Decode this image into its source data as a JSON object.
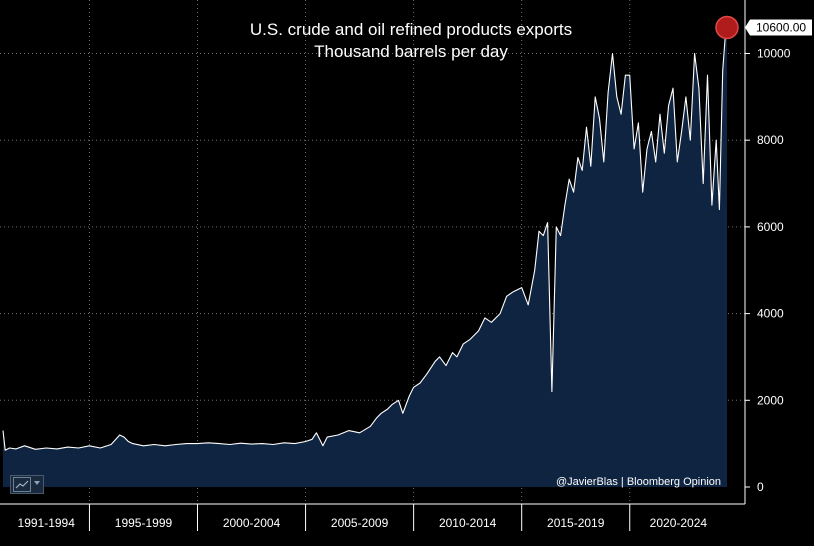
{
  "chart_data": {
    "type": "area",
    "title": "U.S. crude and oil refined products exports",
    "subtitle": "Thousand barrels per day",
    "ylim": [
      0,
      10800
    ],
    "yticks": [
      "0",
      "2000",
      "4000",
      "6000",
      "8000",
      "10000"
    ],
    "ytick_values": [
      0,
      2000,
      4000,
      6000,
      8000,
      10000
    ],
    "x_range": [
      1991,
      2024.5
    ],
    "period_bounds": [
      1991,
      1995,
      2000,
      2005,
      2010,
      2015,
      2020,
      2024.5
    ],
    "x_categories": [
      "1991-1994",
      "1995-1999",
      "2000-2004",
      "2005-2009",
      "2010-2014",
      "2015-2019",
      "2020-2024"
    ],
    "last_value_label": "10600.00",
    "last_value": 10600,
    "credit": "@JavierBlas | Bloomberg Opinion",
    "series": [
      {
        "name": "U.S. crude and oil refined products exports",
        "x": [
          1991.0,
          1991.1,
          1991.3,
          1991.6,
          1992.0,
          1992.5,
          1993.0,
          1993.5,
          1994.0,
          1994.5,
          1995.0,
          1995.5,
          1996.0,
          1996.4,
          1996.6,
          1996.8,
          1997.0,
          1997.5,
          1998.0,
          1998.5,
          1999.0,
          1999.5,
          2000.0,
          2000.5,
          2001.0,
          2001.5,
          2002.0,
          2002.5,
          2003.0,
          2003.5,
          2004.0,
          2004.5,
          2005.0,
          2005.3,
          2005.5,
          2005.8,
          2006.0,
          2006.5,
          2007.0,
          2007.5,
          2008.0,
          2008.3,
          2008.5,
          2008.8,
          2009.0,
          2009.3,
          2009.5,
          2009.8,
          2010.0,
          2010.3,
          2010.6,
          2011.0,
          2011.2,
          2011.5,
          2011.8,
          2012.0,
          2012.3,
          2012.6,
          2013.0,
          2013.3,
          2013.6,
          2014.0,
          2014.3,
          2014.6,
          2015.0,
          2015.3,
          2015.6,
          2015.8,
          2016.0,
          2016.2,
          2016.4,
          2016.6,
          2016.8,
          2017.0,
          2017.2,
          2017.4,
          2017.6,
          2017.8,
          2018.0,
          2018.2,
          2018.4,
          2018.6,
          2018.8,
          2019.0,
          2019.2,
          2019.4,
          2019.6,
          2019.8,
          2020.0,
          2020.2,
          2020.4,
          2020.6,
          2020.8,
          2021.0,
          2021.2,
          2021.4,
          2021.6,
          2021.8,
          2022.0,
          2022.2,
          2022.4,
          2022.6,
          2022.8,
          2023.0,
          2023.2,
          2023.4,
          2023.6,
          2023.8,
          2024.0,
          2024.15,
          2024.3,
          2024.45,
          2024.5
        ],
        "values": [
          1300,
          850,
          900,
          880,
          950,
          870,
          900,
          880,
          920,
          900,
          950,
          900,
          980,
          1200,
          1150,
          1050,
          1000,
          950,
          980,
          950,
          980,
          1000,
          1000,
          1020,
          1000,
          980,
          1010,
          990,
          1000,
          980,
          1020,
          1000,
          1050,
          1100,
          1250,
          950,
          1150,
          1200,
          1300,
          1250,
          1400,
          1600,
          1700,
          1800,
          1900,
          2000,
          1700,
          2100,
          2300,
          2400,
          2600,
          2900,
          3000,
          2800,
          3100,
          3000,
          3300,
          3400,
          3600,
          3900,
          3800,
          4000,
          4400,
          4500,
          4600,
          4200,
          5000,
          5900,
          5800,
          6100,
          2200,
          6000,
          5800,
          6500,
          7100,
          6800,
          7600,
          7300,
          8300,
          7400,
          9000,
          8500,
          7500,
          9100,
          10000,
          9000,
          8600,
          9500,
          9500,
          7800,
          8400,
          6800,
          7800,
          8200,
          7500,
          8600,
          7700,
          8800,
          9200,
          7500,
          8200,
          9000,
          8000,
          10000,
          9200,
          7000,
          9500,
          6500,
          8000,
          6400,
          9600,
          10600,
          10600
        ]
      }
    ]
  }
}
